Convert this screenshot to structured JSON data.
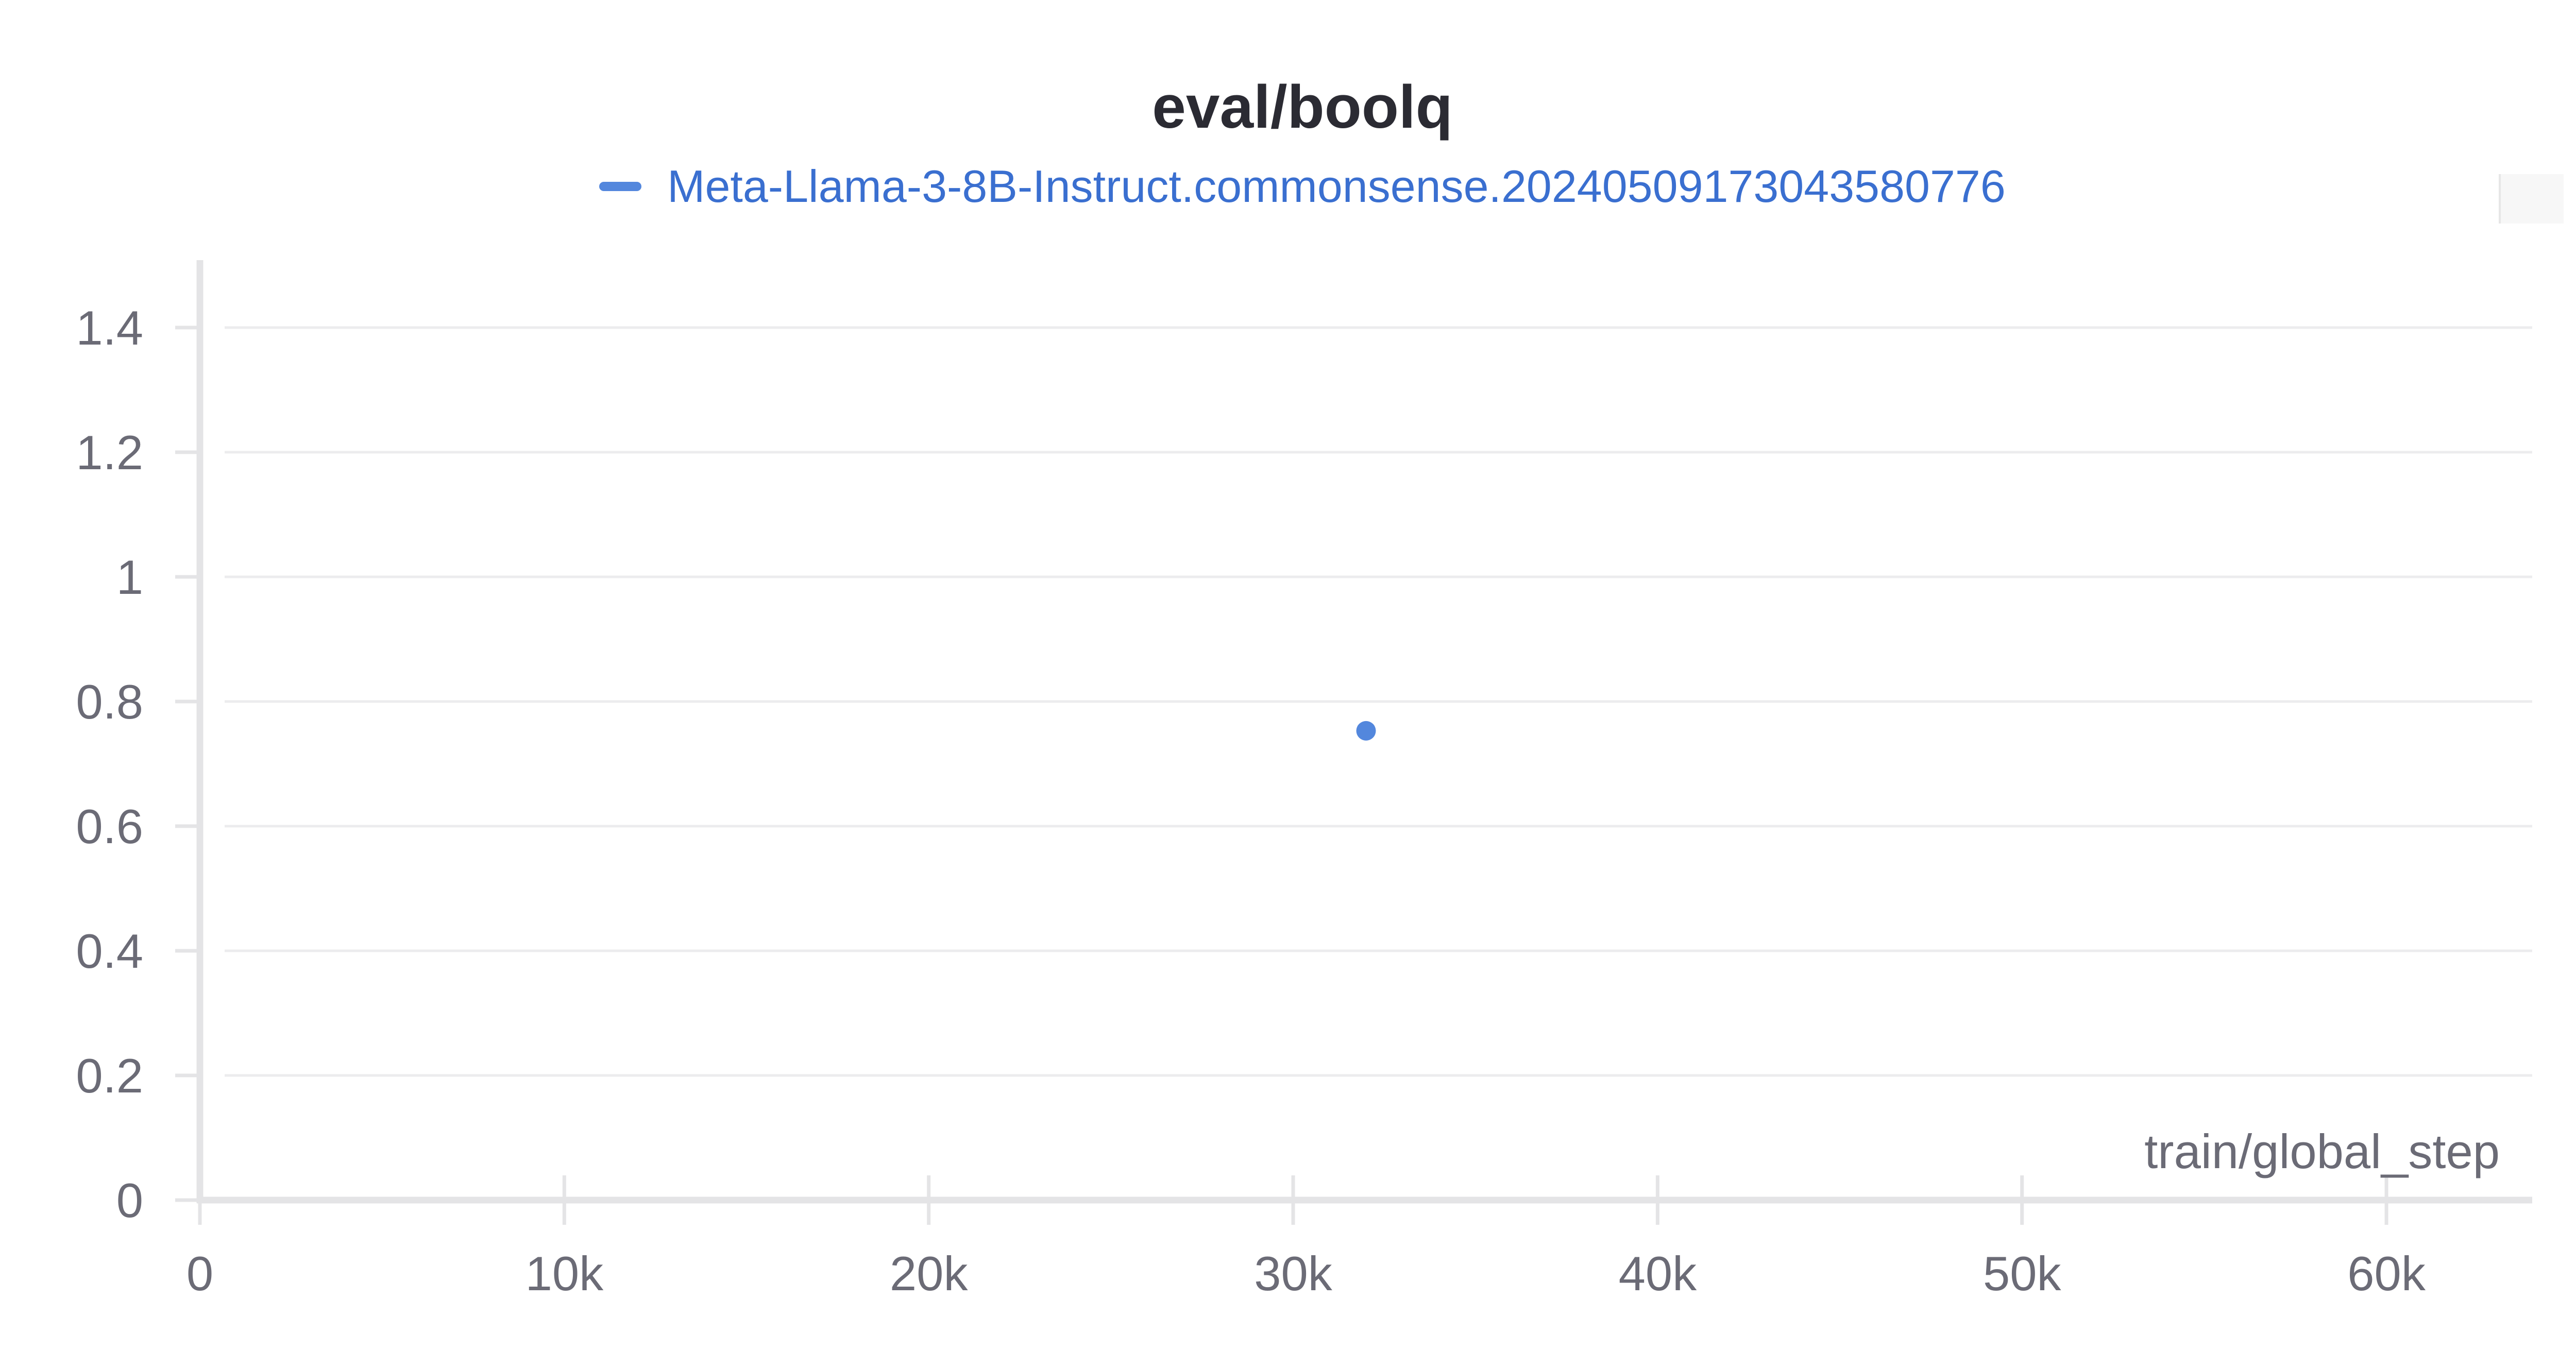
{
  "chart_data": {
    "type": "scatter",
    "title": "eval/boolq",
    "xlabel": "train/global_step",
    "ylabel": "",
    "xlim": [
      0,
      64000
    ],
    "ylim": [
      0,
      1.5
    ],
    "x_ticks": [
      0,
      10000,
      20000,
      30000,
      40000,
      50000,
      60000
    ],
    "x_tick_labels": [
      "0",
      "10k",
      "20k",
      "30k",
      "40k",
      "50k",
      "60k"
    ],
    "y_ticks": [
      0,
      0.2,
      0.4,
      0.6,
      0.8,
      1,
      1.2,
      1.4
    ],
    "y_tick_labels": [
      "0",
      "0.2",
      "0.4",
      "0.6",
      "0.8",
      "1",
      "1.2",
      "1.4"
    ],
    "grid": true,
    "legend_position": "top-center",
    "series": [
      {
        "name": "Meta-Llama-3-8B-Instruct.commonsense.20240509173043580776",
        "color": "#5387dd",
        "points": [
          {
            "x": 32000,
            "y": 0.753
          }
        ]
      }
    ]
  },
  "colors": {
    "legend_text": "#3a6fd0",
    "axis": "#e4e4e6",
    "grid": "#ececee",
    "tick_label": "#6b6b76"
  }
}
